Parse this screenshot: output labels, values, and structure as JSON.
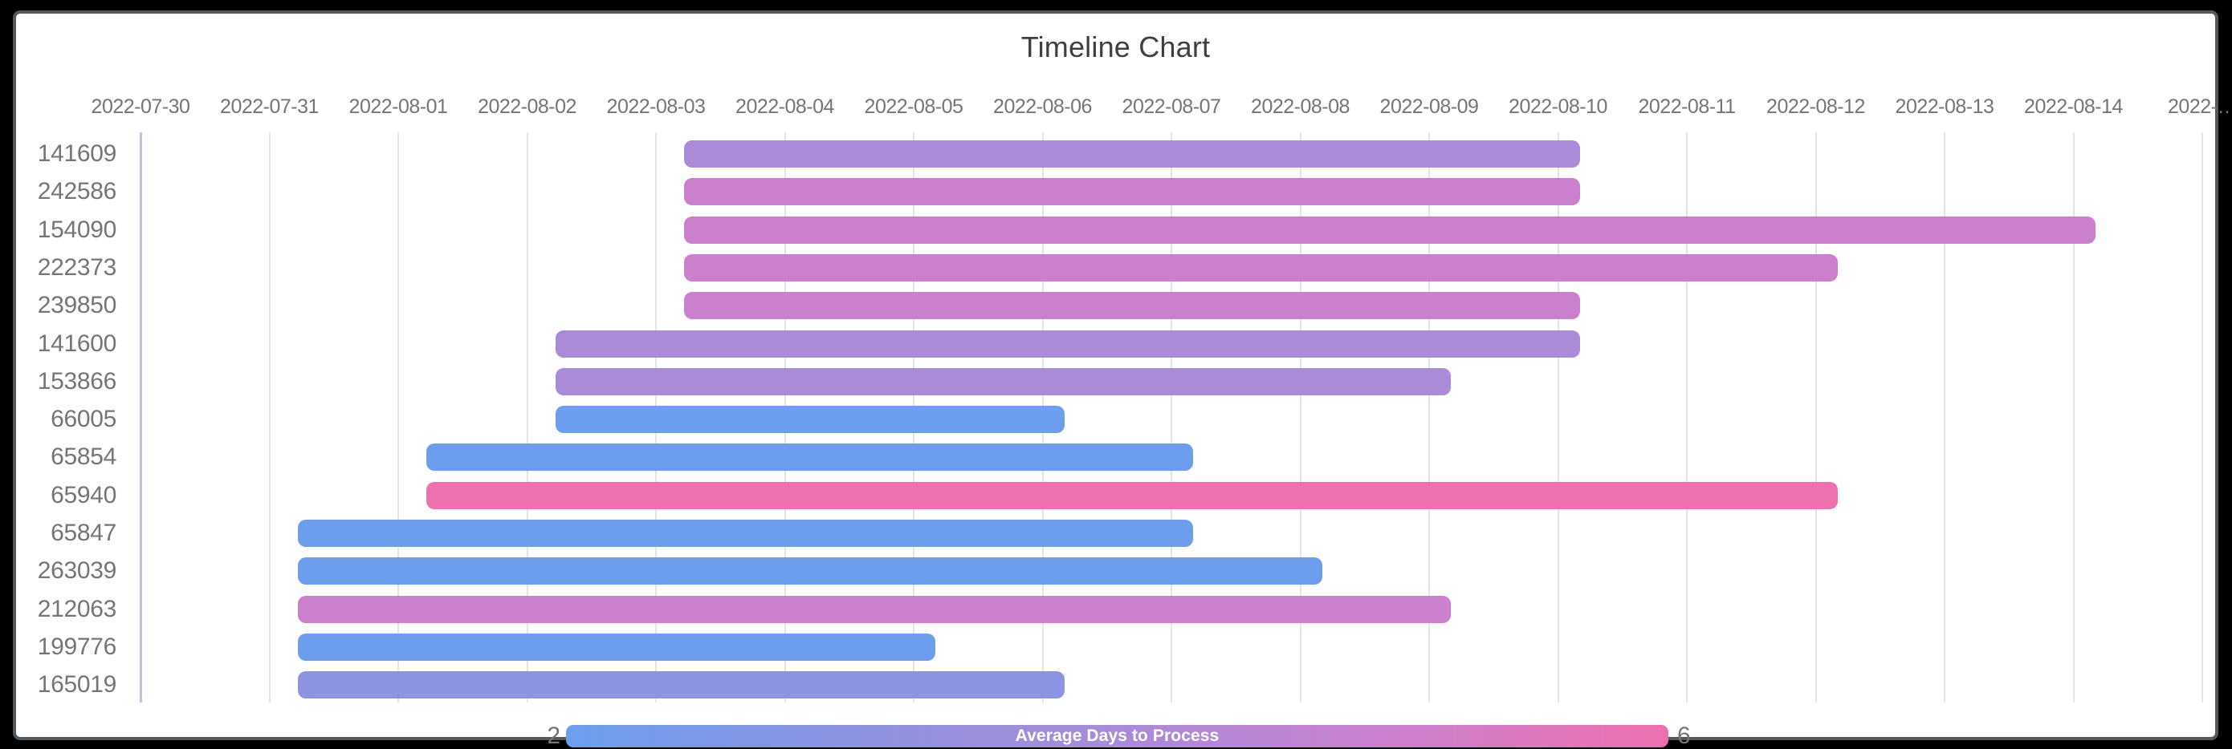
{
  "chart_data": {
    "type": "timeline",
    "title": "Timeline Chart",
    "x_axis": {
      "start_date": "2022-07-30",
      "tick_interval_days": 1,
      "labels": [
        "2022-07-30",
        "2022-07-31",
        "2022-08-01",
        "2022-08-02",
        "2022-08-03",
        "2022-08-04",
        "2022-08-05",
        "2022-08-06",
        "2022-08-07",
        "2022-08-08",
        "2022-08-09",
        "2022-08-10",
        "2022-08-11",
        "2022-08-12",
        "2022-08-13",
        "2022-08-14",
        "2022-…"
      ]
    },
    "colorbar_legend": {
      "title": "Average Days to Process",
      "min_label": "2",
      "max_label": "6",
      "min": 2,
      "max": 6,
      "gradient_stops": [
        "#6d9eee",
        "#8b93e2",
        "#a98bd8",
        "#cb80ce",
        "#ee70ae"
      ]
    },
    "grid": true,
    "rows": [
      {
        "id": "141609",
        "start": "2022-08-03",
        "end": "2022-08-10",
        "duration_days": 7,
        "avg_days_to_process": 4,
        "color": "#a98bd8"
      },
      {
        "id": "242586",
        "start": "2022-08-03",
        "end": "2022-08-10",
        "duration_days": 7,
        "avg_days_to_process": 5,
        "color": "#cb80ce"
      },
      {
        "id": "154090",
        "start": "2022-08-03",
        "end": "2022-08-14",
        "duration_days": 11,
        "avg_days_to_process": 5,
        "color": "#cb80ce"
      },
      {
        "id": "222373",
        "start": "2022-08-03",
        "end": "2022-08-12",
        "duration_days": 9,
        "avg_days_to_process": 5,
        "color": "#cb80ce"
      },
      {
        "id": "239850",
        "start": "2022-08-03",
        "end": "2022-08-10",
        "duration_days": 7,
        "avg_days_to_process": 5,
        "color": "#cb80ce"
      },
      {
        "id": "141600",
        "start": "2022-08-02",
        "end": "2022-08-10",
        "duration_days": 8,
        "avg_days_to_process": 4,
        "color": "#a98bd8"
      },
      {
        "id": "153866",
        "start": "2022-08-02",
        "end": "2022-08-09",
        "duration_days": 7,
        "avg_days_to_process": 4,
        "color": "#a98bd8"
      },
      {
        "id": "66005",
        "start": "2022-08-02",
        "end": "2022-08-06",
        "duration_days": 4,
        "avg_days_to_process": 2,
        "color": "#6d9eee"
      },
      {
        "id": "65854",
        "start": "2022-08-01",
        "end": "2022-08-07",
        "duration_days": 6,
        "avg_days_to_process": 2,
        "color": "#6d9eee"
      },
      {
        "id": "65940",
        "start": "2022-08-01",
        "end": "2022-08-12",
        "duration_days": 11,
        "avg_days_to_process": 6,
        "color": "#ee70ae"
      },
      {
        "id": "65847",
        "start": "2022-07-31",
        "end": "2022-08-07",
        "duration_days": 7,
        "avg_days_to_process": 2,
        "color": "#6d9eee"
      },
      {
        "id": "263039",
        "start": "2022-07-31",
        "end": "2022-08-08",
        "duration_days": 8,
        "avg_days_to_process": 2,
        "color": "#6d9eee"
      },
      {
        "id": "212063",
        "start": "2022-07-31",
        "end": "2022-08-09",
        "duration_days": 9,
        "avg_days_to_process": 5,
        "color": "#cb80ce"
      },
      {
        "id": "199776",
        "start": "2022-07-31",
        "end": "2022-08-05",
        "duration_days": 5,
        "avg_days_to_process": 2,
        "color": "#6d9eee"
      },
      {
        "id": "165019",
        "start": "2022-07-31",
        "end": "2022-08-06",
        "duration_days": 6,
        "avg_days_to_process": 3,
        "color": "#8b93e2"
      }
    ]
  }
}
